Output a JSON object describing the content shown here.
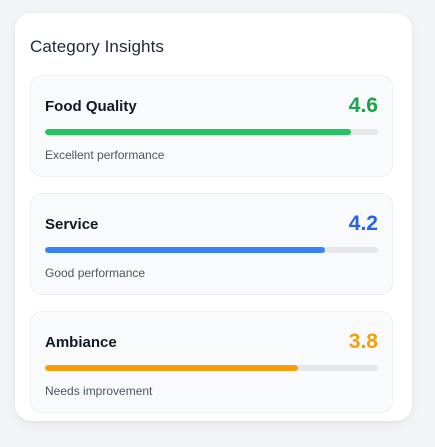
{
  "panel": {
    "title": "Category Insights"
  },
  "categories": [
    {
      "name": "Food Quality",
      "score": "4.6",
      "score_value": 4.6,
      "max_score": 5,
      "status": "Excellent performance",
      "color": "#22c55e",
      "score_color": "#16a34a"
    },
    {
      "name": "Service",
      "score": "4.2",
      "score_value": 4.2,
      "max_score": 5,
      "status": "Good performance",
      "color": "#3b82f6",
      "score_color": "#2563eb"
    },
    {
      "name": "Ambiance",
      "score": "3.8",
      "score_value": 3.8,
      "max_score": 5,
      "status": "Needs improvement",
      "color": "#f59e0b",
      "score_color": "#f59e0b"
    }
  ]
}
